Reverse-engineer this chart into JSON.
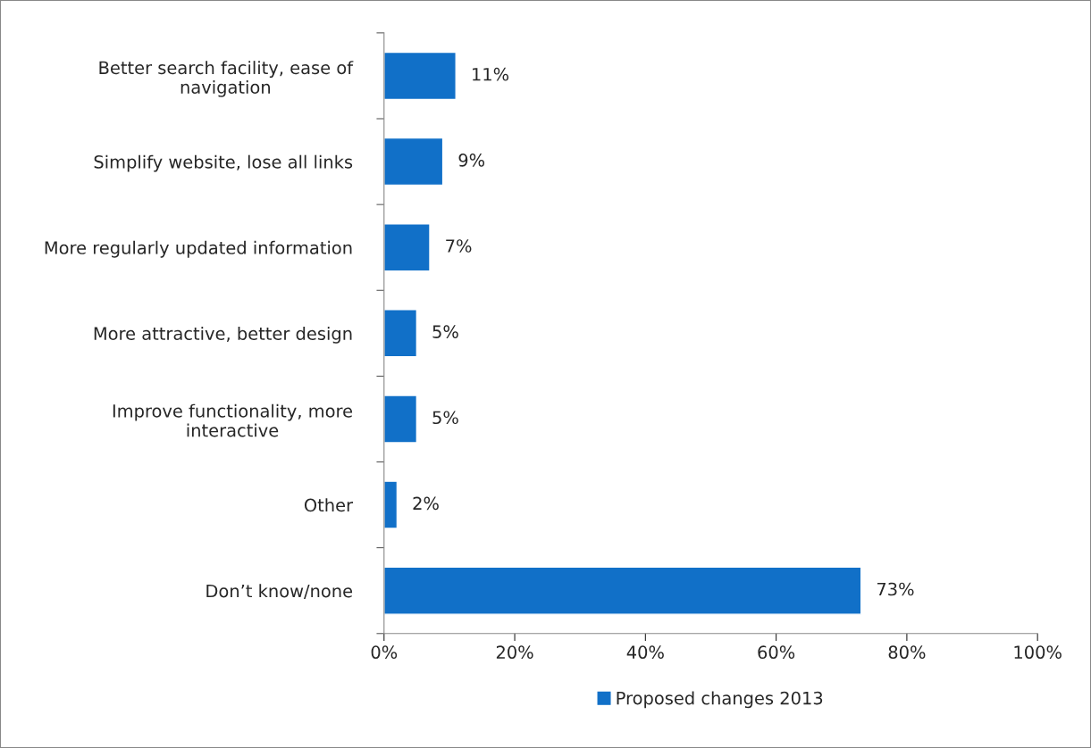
{
  "chart_data": {
    "type": "bar",
    "orientation": "horizontal",
    "categories": [
      "Better search facility, ease of\nnavigation",
      "Simplify website, lose all links",
      "More regularly updated information",
      "More attractive, better design",
      "Improve functionality, more\ninteractive",
      "Other",
      "Don’t know/none"
    ],
    "series": [
      {
        "name": "Proposed changes 2013",
        "color": "#1170c8",
        "values": [
          11,
          9,
          7,
          5,
          5,
          2,
          73
        ],
        "value_labels": [
          "11%",
          "9%",
          "7%",
          "5%",
          "5%",
          "2%",
          "73%"
        ]
      }
    ],
    "xlim": [
      0,
      100
    ],
    "xticks": [
      {
        "value": 0,
        "label": "0%"
      },
      {
        "value": 20,
        "label": "20%"
      },
      {
        "value": 40,
        "label": "40%"
      },
      {
        "value": 60,
        "label": "60%"
      },
      {
        "value": 80,
        "label": "80%"
      },
      {
        "value": 100,
        "label": "100%"
      }
    ],
    "grid": false,
    "legend": "bottom"
  }
}
